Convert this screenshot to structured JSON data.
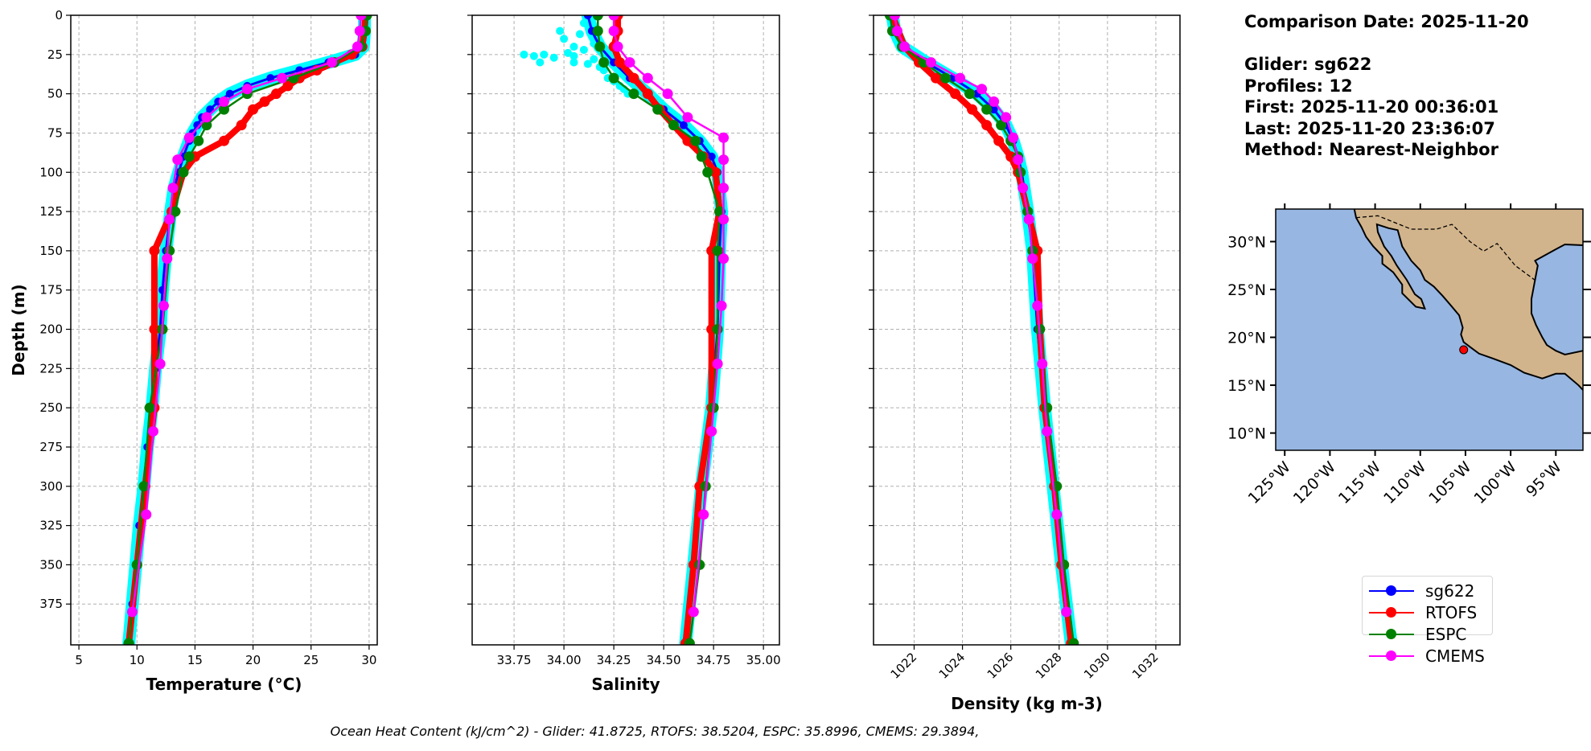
{
  "info": {
    "comparison_date": "Comparison Date: 2025-11-20",
    "glider": "Glider: sg622",
    "profiles": "Profiles: 12",
    "first": "First: 2025-11-20 00:36:01",
    "last": "Last: 2025-11-20 23:36:07",
    "method": "Method: Nearest-Neighbor"
  },
  "footer": "Ocean Heat Content (kJ/cm^2) - Glider: 41.8725,  RTOFS: 38.5204,  ESPC: 35.8996,  CMEMS: 29.3894,",
  "legend": [
    {
      "name": "sg622",
      "color": "#0000ff"
    },
    {
      "name": "RTOFS",
      "color": "#ff0000"
    },
    {
      "name": "ESPC",
      "color": "#008000"
    },
    {
      "name": "CMEMS",
      "color": "#ff00ff"
    }
  ],
  "colors": {
    "individual_profiles": "#00ffff",
    "ocean": "#97b6e1",
    "land": "#d2b48c",
    "grid": "#b0b0b0"
  },
  "chart_data": [
    {
      "type": "line",
      "xlabel": "Temperature (°C)",
      "ylabel": "Depth (m)",
      "xlim": [
        4.3,
        30.7
      ],
      "ylim": [
        401,
        0
      ],
      "y_inverted": true,
      "xticks": [
        "5",
        "10",
        "15",
        "20",
        "25",
        "30"
      ],
      "yticks": [
        "0",
        "25",
        "50",
        "75",
        "100",
        "125",
        "150",
        "175",
        "200",
        "225",
        "250",
        "275",
        "300",
        "325",
        "350",
        "375"
      ],
      "grid": true,
      "series": [
        {
          "name": "sg622",
          "depth": [
            0,
            10,
            20,
            25,
            30,
            35,
            40,
            45,
            50,
            55,
            60,
            65,
            70,
            75,
            80,
            90,
            100,
            110,
            125,
            150,
            175,
            200,
            225,
            250,
            275,
            300,
            325,
            350,
            375,
            400
          ],
          "values": [
            29.6,
            29.6,
            29.5,
            28.8,
            26.5,
            24,
            21.5,
            19.5,
            18,
            17,
            16.3,
            15.6,
            15.2,
            14.8,
            14.5,
            14.0,
            13.6,
            13.2,
            12.9,
            12.5,
            12.2,
            12.0,
            11.6,
            11.3,
            10.9,
            10.6,
            10.2,
            9.9,
            9.6,
            9.3
          ]
        },
        {
          "name": "RTOFS",
          "depth": [
            0,
            10,
            20,
            25,
            30,
            35,
            40,
            45,
            50,
            55,
            60,
            70,
            80,
            90,
            100,
            125,
            150,
            200,
            250,
            300,
            350,
            400
          ],
          "values": [
            29.7,
            29.6,
            29.4,
            28.5,
            27,
            25.5,
            24,
            23,
            22,
            21,
            20,
            19,
            17.5,
            15,
            14,
            13,
            11.5,
            11.5,
            11.5,
            10.7,
            10,
            9.3
          ]
        },
        {
          "name": "ESPC",
          "depth": [
            0,
            10,
            20,
            30,
            40,
            50,
            60,
            70,
            80,
            90,
            100,
            125,
            150,
            200,
            250,
            300,
            350,
            400
          ],
          "values": [
            29.8,
            29.7,
            29.3,
            27,
            23.5,
            19.5,
            17.5,
            16,
            15.3,
            14.5,
            14,
            13.3,
            12.8,
            12.2,
            11.1,
            10.6,
            10,
            9.3
          ]
        },
        {
          "name": "CMEMS",
          "depth": [
            0,
            10,
            20,
            30,
            40,
            47,
            55,
            65,
            78,
            92,
            110,
            130,
            155,
            185,
            222,
            265,
            318,
            380
          ],
          "values": [
            29.3,
            29.2,
            29,
            26.8,
            22.5,
            19.5,
            17.5,
            16,
            14.5,
            13.5,
            13.1,
            12.8,
            12.6,
            12.3,
            12.0,
            11.4,
            10.8,
            9.6
          ]
        }
      ]
    },
    {
      "type": "line",
      "xlabel": "Salinity",
      "xlim": [
        33.54,
        35.08
      ],
      "ylim": [
        401,
        0
      ],
      "y_inverted": true,
      "xticks": [
        "33.75",
        "34.00",
        "34.25",
        "34.50",
        "34.75",
        "35.00"
      ],
      "grid": true,
      "individual_profile_points": [
        [
          33.8,
          25
        ],
        [
          33.85,
          26
        ],
        [
          33.9,
          25
        ],
        [
          33.95,
          27
        ],
        [
          33.88,
          30
        ],
        [
          34.02,
          24
        ],
        [
          34.05,
          30
        ],
        [
          34.1,
          22
        ],
        [
          34.15,
          28
        ],
        [
          34.2,
          35
        ],
        [
          34.08,
          12
        ],
        [
          34.1,
          5
        ],
        [
          34.0,
          15
        ],
        [
          34.05,
          20
        ],
        [
          33.98,
          10
        ],
        [
          34.12,
          0
        ],
        [
          34.15,
          18
        ],
        [
          34.22,
          40
        ],
        [
          34.28,
          45
        ],
        [
          34.32,
          50
        ],
        [
          34.25,
          42
        ],
        [
          34.18,
          33
        ],
        [
          34.05,
          26
        ],
        [
          34.12,
          31
        ],
        [
          34.3,
          47
        ],
        [
          34.4,
          50
        ],
        [
          34.2,
          28
        ]
      ],
      "series": [
        {
          "name": "sg622",
          "depth": [
            0,
            10,
            20,
            30,
            40,
            50,
            60,
            70,
            80,
            90,
            100,
            125,
            150,
            200,
            250,
            300,
            350,
            400
          ],
          "values": [
            34.12,
            34.14,
            34.18,
            34.25,
            34.33,
            34.42,
            34.5,
            34.6,
            34.68,
            34.74,
            34.77,
            34.79,
            34.78,
            34.77,
            34.74,
            34.69,
            34.65,
            34.61
          ]
        },
        {
          "name": "RTOFS",
          "depth": [
            0,
            10,
            20,
            30,
            40,
            50,
            60,
            70,
            80,
            90,
            100,
            125,
            150,
            200,
            250,
            300,
            350,
            400
          ],
          "values": [
            34.27,
            34.27,
            34.25,
            34.28,
            34.35,
            34.42,
            34.48,
            34.55,
            34.62,
            34.7,
            34.76,
            34.78,
            34.74,
            34.74,
            34.74,
            34.68,
            34.65,
            34.61
          ]
        },
        {
          "name": "ESPC",
          "depth": [
            0,
            10,
            20,
            30,
            40,
            50,
            60,
            70,
            80,
            90,
            100,
            125,
            150,
            200,
            250,
            300,
            350,
            400
          ],
          "values": [
            34.17,
            34.17,
            34.18,
            34.2,
            34.25,
            34.35,
            34.47,
            34.55,
            34.66,
            34.69,
            34.72,
            34.78,
            34.77,
            34.77,
            34.75,
            34.71,
            34.68,
            34.63
          ]
        },
        {
          "name": "CMEMS",
          "depth": [
            0,
            10,
            20,
            30,
            40,
            50,
            65,
            78,
            92,
            110,
            130,
            155,
            185,
            222,
            265,
            318,
            380
          ],
          "values": [
            34.25,
            34.25,
            34.27,
            34.33,
            34.42,
            34.52,
            34.62,
            34.8,
            34.8,
            34.8,
            34.8,
            34.8,
            34.79,
            34.77,
            34.74,
            34.7,
            34.65
          ]
        }
      ]
    },
    {
      "type": "line",
      "xlabel": "Density (kg m-3)",
      "xlim": [
        1020.32,
        1033.0
      ],
      "ylim": [
        401,
        0
      ],
      "y_inverted": true,
      "xticks": [
        "1022",
        "1024",
        "1026",
        "1028",
        "1030",
        "1032"
      ],
      "grid": true,
      "series": [
        {
          "name": "sg622",
          "depth": [
            0,
            10,
            20,
            30,
            40,
            50,
            60,
            70,
            80,
            90,
            100,
            125,
            150,
            200,
            250,
            300,
            350,
            400
          ],
          "values": [
            1021.1,
            1021.2,
            1021.5,
            1022.5,
            1023.6,
            1024.6,
            1025.3,
            1025.8,
            1026.1,
            1026.3,
            1026.45,
            1026.7,
            1026.9,
            1027.1,
            1027.4,
            1027.75,
            1028.1,
            1028.5
          ]
        },
        {
          "name": "RTOFS",
          "depth": [
            0,
            20,
            30,
            40,
            50,
            60,
            70,
            80,
            90,
            100,
            125,
            150,
            200,
            250,
            300,
            350,
            400
          ],
          "values": [
            1021.1,
            1021.6,
            1022.2,
            1022.9,
            1023.7,
            1024.4,
            1025,
            1025.5,
            1026,
            1026.3,
            1026.7,
            1027.1,
            1027.2,
            1027.4,
            1027.8,
            1028.1,
            1028.5
          ]
        },
        {
          "name": "ESPC",
          "depth": [
            0,
            10,
            20,
            30,
            40,
            50,
            60,
            70,
            80,
            90,
            100,
            125,
            150,
            200,
            250,
            300,
            350,
            400
          ],
          "values": [
            1021.0,
            1021.1,
            1021.5,
            1022.4,
            1023.3,
            1024.3,
            1025.0,
            1025.6,
            1026.0,
            1026.3,
            1026.4,
            1026.7,
            1026.9,
            1027.2,
            1027.5,
            1027.9,
            1028.2,
            1028.6
          ]
        },
        {
          "name": "CMEMS",
          "depth": [
            0,
            10,
            20,
            30,
            40,
            47,
            55,
            65,
            78,
            92,
            110,
            130,
            155,
            185,
            222,
            265,
            318,
            380
          ],
          "values": [
            1021.2,
            1021.3,
            1021.6,
            1022.7,
            1023.9,
            1024.8,
            1025.3,
            1025.8,
            1026.1,
            1026.3,
            1026.5,
            1026.75,
            1026.9,
            1027.1,
            1027.3,
            1027.5,
            1027.9,
            1028.3
          ]
        }
      ]
    }
  ],
  "map": {
    "type": "map",
    "lon_range": [
      -126,
      -92
    ],
    "lat_range": [
      8.2,
      33.4
    ],
    "lon_ticks": [
      "125°W",
      "120°W",
      "115°W",
      "110°W",
      "105°W",
      "100°W",
      "95°W"
    ],
    "lat_ticks": [
      "10°N",
      "15°N",
      "20°N",
      "25°N",
      "30°N"
    ],
    "glider_location": {
      "lon": -105.2,
      "lat": 18.7,
      "color": "#ff0000"
    }
  }
}
